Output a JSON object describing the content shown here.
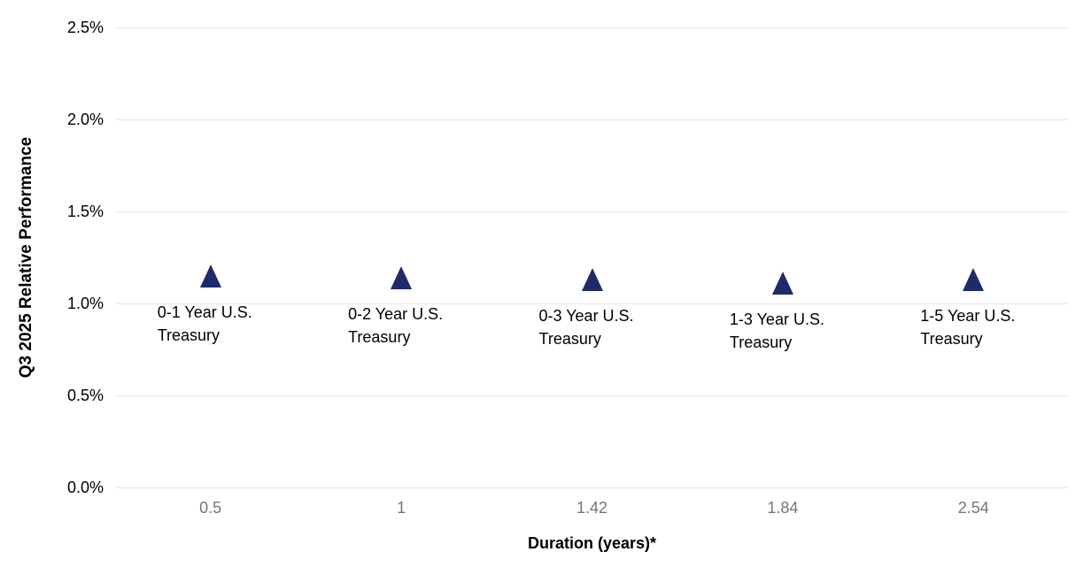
{
  "chart_data": {
    "type": "scatter",
    "title": "",
    "xlabel": "Duration (years)*",
    "ylabel": "Q3 2025 Relative Performance",
    "ylim": [
      0,
      2.5
    ],
    "grid": "horizontal",
    "legend": "none",
    "x_axis_type": "categorical-equal-spacing",
    "marker_shape": "triangle-up",
    "y_ticks": [
      {
        "value": 0.0,
        "label": "0.0%"
      },
      {
        "value": 0.5,
        "label": "0.5%"
      },
      {
        "value": 1.0,
        "label": "1.0%"
      },
      {
        "value": 1.5,
        "label": "1.5%"
      },
      {
        "value": 2.0,
        "label": "2.0%"
      },
      {
        "value": 2.5,
        "label": "2.5%"
      }
    ],
    "points": [
      {
        "label": "0-1 Year U.S. Treasury",
        "label_lines": [
          "0-1 Year U.S.",
          "Treasury"
        ],
        "x_tick_label": "0.5",
        "duration_years": 0.5,
        "performance_pct": 1.15
      },
      {
        "label": "0-2 Year U.S. Treasury",
        "label_lines": [
          "0-2 Year U.S.",
          "Treasury"
        ],
        "x_tick_label": "1",
        "duration_years": 1,
        "performance_pct": 1.14
      },
      {
        "label": "0-3 Year U.S. Treasury",
        "label_lines": [
          "0-3 Year U.S.",
          "Treasury"
        ],
        "x_tick_label": "1.42",
        "duration_years": 1.42,
        "performance_pct": 1.13
      },
      {
        "label": "1-3 Year U.S. Treasury",
        "label_lines": [
          "1-3 Year U.S.",
          "Treasury"
        ],
        "x_tick_label": "1.84",
        "duration_years": 1.84,
        "performance_pct": 1.11
      },
      {
        "label": "1-5 Year U.S. Treasury",
        "label_lines": [
          "1-5 Year U.S.",
          "Treasury"
        ],
        "x_tick_label": "2.54",
        "duration_years": 2.54,
        "performance_pct": 1.13
      }
    ],
    "colors": {
      "marker": "#1f2a6b",
      "gridline": "#e7e7e7",
      "x_tick_text": "#757575",
      "axis_text": "#000000",
      "background": "#ffffff"
    }
  }
}
